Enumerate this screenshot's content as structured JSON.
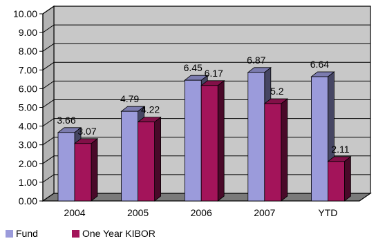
{
  "chart_data": {
    "type": "bar",
    "variant": "3d-clustered-column",
    "categories": [
      "2004",
      "2005",
      "2006",
      "2007",
      "YTD"
    ],
    "series": [
      {
        "name": "Fund",
        "values": [
          3.66,
          4.79,
          6.45,
          6.87,
          6.64
        ],
        "labels": [
          "3.66",
          "4.79",
          "6.45",
          "6.87",
          "6.64"
        ],
        "color": "#9B9BDB"
      },
      {
        "name": "One Year KIBOR",
        "values": [
          3.07,
          4.22,
          6.17,
          5.2,
          2.11
        ],
        "labels": [
          "3.07",
          "4.22",
          "6.17",
          "5.2",
          "2.11"
        ],
        "color": "#A3145A"
      }
    ],
    "ylim": [
      0,
      10
    ],
    "yticks": [
      "0.00",
      "1.00",
      "2.00",
      "3.00",
      "4.00",
      "5.00",
      "6.00",
      "7.00",
      "8.00",
      "9.00",
      "10.00"
    ],
    "grid": true,
    "legend": "bottom-left",
    "colors": {
      "wall": "#C8C8C8",
      "floor": "#7A7A7A",
      "grid": "#000000"
    }
  }
}
